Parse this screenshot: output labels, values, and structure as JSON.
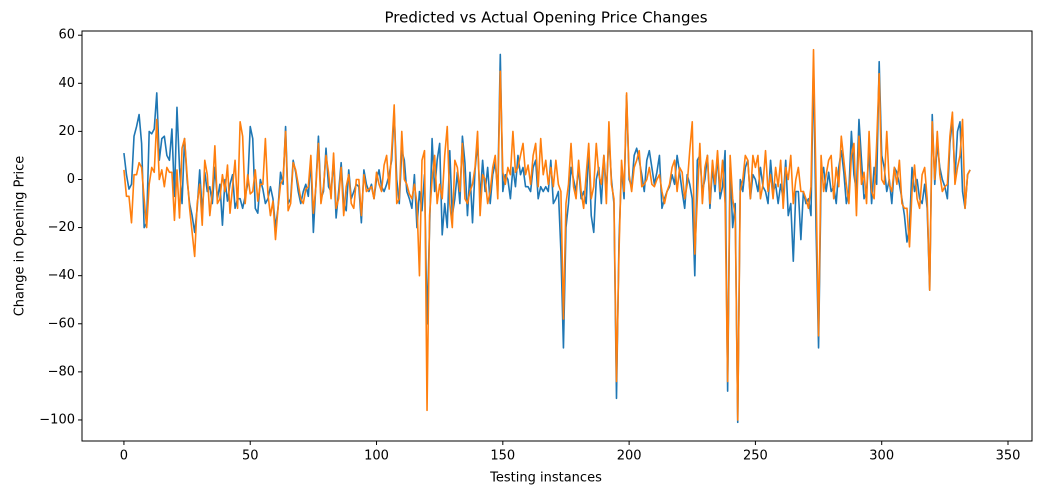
{
  "chart_data": {
    "type": "line",
    "title": "Predicted vs Actual Opening Price Changes",
    "x_label": "Testing instances",
    "y_label": "Change in Opening Price",
    "xlim": [
      -16.6,
      359.5
    ],
    "ylim": [
      -108.75,
      61.75
    ],
    "xticks": [
      0,
      50,
      100,
      150,
      200,
      250,
      300,
      350
    ],
    "yticks": [
      {
        "value": -100,
        "label": "−100"
      },
      {
        "value": -80,
        "label": "−80"
      },
      {
        "value": -60,
        "label": "−60"
      },
      {
        "value": -40,
        "label": "−40"
      },
      {
        "value": -20,
        "label": "−20"
      },
      0,
      20,
      40,
      60
    ],
    "x": [
      0,
      1,
      2,
      3,
      4,
      5,
      6,
      7,
      8,
      9,
      10,
      11,
      12,
      13,
      14,
      15,
      16,
      17,
      18,
      19,
      20,
      21,
      22,
      23,
      24,
      25,
      26,
      27,
      28,
      29,
      30,
      31,
      32,
      33,
      34,
      35,
      36,
      37,
      38,
      39,
      40,
      41,
      42,
      43,
      44,
      45,
      46,
      47,
      48,
      49,
      50,
      51,
      52,
      53,
      54,
      55,
      56,
      57,
      58,
      59,
      60,
      61,
      62,
      63,
      64,
      65,
      66,
      67,
      68,
      69,
      70,
      71,
      72,
      73,
      74,
      75,
      76,
      77,
      78,
      79,
      80,
      81,
      82,
      83,
      84,
      85,
      86,
      87,
      88,
      89,
      90,
      91,
      92,
      93,
      94,
      95,
      96,
      97,
      98,
      99,
      100,
      101,
      102,
      103,
      104,
      105,
      106,
      107,
      108,
      109,
      110,
      111,
      112,
      113,
      114,
      115,
      116,
      117,
      118,
      119,
      120,
      121,
      122,
      123,
      124,
      125,
      126,
      127,
      128,
      129,
      130,
      131,
      132,
      133,
      134,
      135,
      136,
      137,
      138,
      139,
      140,
      141,
      142,
      143,
      144,
      145,
      146,
      147,
      148,
      149,
      150,
      151,
      152,
      153,
      154,
      155,
      156,
      157,
      158,
      159,
      160,
      161,
      162,
      163,
      164,
      165,
      166,
      167,
      168,
      169,
      170,
      171,
      172,
      173,
      174,
      175,
      176,
      177,
      178,
      179,
      180,
      181,
      182,
      183,
      184,
      185,
      186,
      187,
      188,
      189,
      190,
      191,
      192,
      193,
      194,
      195,
      196,
      197,
      198,
      199,
      200,
      201,
      202,
      203,
      204,
      205,
      206,
      207,
      208,
      209,
      210,
      211,
      212,
      213,
      214,
      215,
      216,
      217,
      218,
      219,
      220,
      221,
      222,
      223,
      224,
      225,
      226,
      227,
      228,
      229,
      230,
      231,
      232,
      233,
      234,
      235,
      236,
      237,
      238,
      239,
      240,
      241,
      242,
      243,
      244,
      245,
      246,
      247,
      248,
      249,
      250,
      251,
      252,
      253,
      254,
      255,
      256,
      257,
      258,
      259,
      260,
      261,
      262,
      263,
      264,
      265,
      266,
      267,
      268,
      269,
      270,
      271,
      272,
      273,
      274,
      275,
      276,
      277,
      278,
      279,
      280,
      281,
      282,
      283,
      284,
      285,
      286,
      287,
      288,
      289,
      290,
      291,
      292,
      293,
      294,
      295,
      296,
      297,
      298,
      299,
      300,
      301,
      302,
      303,
      304,
      305,
      306,
      307,
      308,
      309,
      310,
      311,
      312,
      313,
      314,
      315,
      316,
      317,
      318,
      319,
      320,
      321,
      322,
      323,
      324,
      325,
      326,
      327,
      328,
      329,
      330,
      331,
      332,
      333,
      334,
      335
    ],
    "series": [
      {
        "color": "#1f77b4",
        "values": [
          11,
          2,
          -4,
          -2,
          18,
          22,
          27,
          15,
          -20,
          -18,
          20,
          19,
          21,
          36,
          8,
          17,
          18,
          10,
          8,
          21,
          -7,
          30,
          5,
          -10,
          17,
          0,
          -10,
          -15,
          -22,
          -12,
          4,
          -14,
          3,
          -5,
          -3,
          -10,
          5,
          -8,
          -2,
          -19,
          0,
          -9,
          -2,
          2,
          -12,
          -8,
          -8,
          -12,
          -7,
          -2,
          22,
          17,
          -12,
          -14,
          0,
          -4,
          -10,
          -8,
          -3,
          -8,
          -20,
          -12,
          3,
          -2,
          22,
          -10,
          -8,
          8,
          3,
          -5,
          -10,
          -5,
          -2,
          -7,
          8,
          -22,
          -2,
          18,
          -8,
          -5,
          13,
          -3,
          -5,
          8,
          -16,
          -5,
          7,
          -10,
          -13,
          4,
          -8,
          -5,
          -2,
          -3,
          -18,
          4,
          -2,
          -5,
          -2,
          -8,
          0,
          4,
          -3,
          -5,
          -2,
          2,
          8,
          28,
          0,
          -10,
          12,
          8,
          -5,
          -8,
          -12,
          2,
          -20,
          -5,
          -13,
          2,
          -60,
          -20,
          17,
          -5,
          8,
          15,
          -23,
          -10,
          -20,
          12,
          -15,
          -8,
          3,
          -10,
          18,
          7,
          -15,
          3,
          -18,
          4,
          15,
          -8,
          8,
          -5,
          5,
          -10,
          2,
          7,
          -5,
          52,
          -5,
          2,
          0,
          -8,
          5,
          -3,
          10,
          2,
          5,
          -3,
          -3,
          -5,
          5,
          8,
          -8,
          -3,
          -5,
          -3,
          -5,
          8,
          -10,
          -8,
          -5,
          -30,
          -70,
          -20,
          -10,
          5,
          0,
          -5,
          5,
          -8,
          -5,
          -10,
          13,
          -15,
          -22,
          0,
          5,
          -10,
          10,
          -5,
          18,
          0,
          -10,
          -91,
          -25,
          5,
          -8,
          35,
          0,
          -3,
          10,
          13,
          8,
          2,
          -5,
          8,
          12,
          5,
          -2,
          3,
          10,
          -12,
          -8,
          -5,
          -3,
          2,
          -2,
          10,
          3,
          -5,
          -12,
          2,
          -2,
          -8,
          -40,
          8,
          10,
          -5,
          0,
          10,
          -12,
          5,
          -5,
          10,
          -8,
          -3,
          12,
          -88,
          5,
          -20,
          -10,
          -101,
          0,
          -5,
          5,
          8,
          -8,
          2,
          0,
          -5,
          5,
          -3,
          -5,
          -10,
          8,
          -5,
          -2,
          -10,
          -2,
          -8,
          8,
          -15,
          -10,
          -34,
          -5,
          -5,
          -25,
          -5,
          -10,
          -8,
          -15,
          48,
          -20,
          -70,
          0,
          5,
          -5,
          3,
          -5,
          -3,
          -10,
          5,
          12,
          3,
          -10,
          -5,
          20,
          2,
          -5,
          25,
          8,
          -8,
          -5,
          12,
          -10,
          5,
          -2,
          49,
          10,
          5,
          -5,
          0,
          -10,
          5,
          3,
          -2,
          -8,
          -15,
          -26,
          -20,
          5,
          -5,
          0,
          -8,
          -10,
          -2,
          -12,
          -46,
          27,
          -2,
          15,
          5,
          0,
          -3,
          -8,
          15,
          25,
          0,
          20,
          24,
          -5,
          -12,
          2,
          4
        ]
      },
      {
        "color": "#ff7f0e",
        "values": [
          4,
          -7,
          -7,
          -18,
          2,
          2,
          7,
          5,
          -8,
          -20,
          -2,
          5,
          3,
          25,
          0,
          4,
          -3,
          5,
          3,
          3,
          -17,
          4,
          -16,
          13,
          17,
          2,
          -12,
          -22,
          -32,
          -10,
          -2,
          -19,
          8,
          2,
          -15,
          -5,
          14,
          -10,
          -8,
          2,
          -5,
          6,
          -14,
          -3,
          8,
          -12,
          24,
          18,
          -10,
          2,
          -6,
          -5,
          4,
          -9,
          -2,
          -2,
          17,
          -6,
          -15,
          -9,
          -25,
          -12,
          -2,
          0,
          20,
          -13,
          -10,
          7,
          4,
          -2,
          -8,
          -10,
          -4,
          -3,
          10,
          -14,
          -3,
          15,
          -10,
          -3,
          10,
          3,
          -8,
          11,
          -12,
          -8,
          5,
          -15,
          -3,
          2,
          -10,
          -12,
          0,
          0,
          -15,
          2,
          -5,
          -4,
          -3,
          -8,
          3,
          -2,
          -5,
          6,
          10,
          -4,
          12,
          31,
          -10,
          -8,
          20,
          0,
          -2,
          -6,
          -8,
          -2,
          -10,
          -40,
          8,
          12,
          -96,
          -15,
          0,
          10,
          -10,
          -2,
          -8,
          10,
          22,
          -10,
          -20,
          8,
          5,
          -5,
          15,
          -8,
          -10,
          -5,
          -2,
          5,
          20,
          -15,
          2,
          0,
          -10,
          -5,
          5,
          10,
          -8,
          45,
          3,
          -2,
          5,
          2,
          20,
          3,
          5,
          10,
          15,
          2,
          6,
          -2,
          10,
          15,
          -3,
          17,
          2,
          8,
          -2,
          5,
          -3,
          8,
          -2,
          -5,
          -58,
          -10,
          -2,
          15,
          -3,
          -8,
          8,
          -5,
          -12,
          2,
          15,
          -8,
          -3,
          15,
          2,
          -2,
          10,
          -10,
          24,
          -2,
          -8,
          -84,
          -30,
          8,
          -5,
          36,
          2,
          -5,
          5,
          8,
          12,
          -3,
          -2,
          0,
          5,
          -2,
          -3,
          0,
          2,
          -5,
          -10,
          -5,
          -2,
          5,
          8,
          -5,
          5,
          3,
          -8,
          -2,
          12,
          24,
          -31,
          -8,
          15,
          -10,
          5,
          10,
          -10,
          8,
          -2,
          12,
          -5,
          8,
          -10,
          -84,
          10,
          -8,
          -15,
          -100,
          -5,
          0,
          10,
          8,
          -8,
          10,
          5,
          10,
          -8,
          -2,
          12,
          -5,
          2,
          -8,
          5,
          -3,
          8,
          -12,
          5,
          0,
          10,
          -10,
          0,
          5,
          -5,
          -5,
          -8,
          -12,
          -3,
          54,
          -2,
          -65,
          10,
          -5,
          2,
          8,
          10,
          -8,
          5,
          -3,
          18,
          8,
          -2,
          -10,
          10,
          15,
          -15,
          18,
          -2,
          3,
          -10,
          20,
          -5,
          -8,
          15,
          44,
          0,
          -2,
          20,
          -2,
          -5,
          5,
          -2,
          8,
          -10,
          -12,
          -12,
          -28,
          -5,
          6,
          -8,
          -12,
          2,
          5,
          -8,
          -46,
          24,
          0,
          20,
          2,
          -5,
          -3,
          -2,
          18,
          28,
          -2,
          5,
          10,
          25,
          -12,
          2,
          4
        ]
      }
    ]
  }
}
